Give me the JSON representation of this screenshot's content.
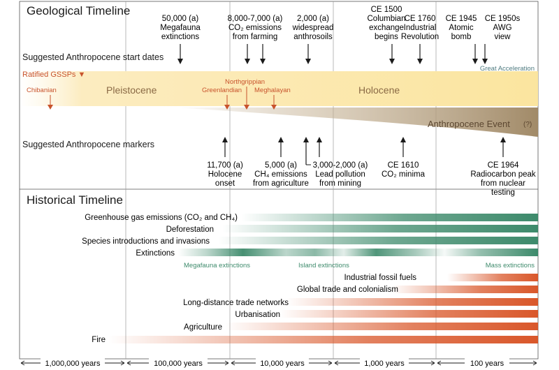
{
  "geo_title": "Geological Timeline",
  "hist_title": "Historical Timeline",
  "start_dates_label": "Suggested Anthropocene start dates",
  "markers_label": "Suggested Anthropocene markers",
  "ratified_gssps": "Ratified GSSPs ▼",
  "epochs": {
    "pleistocene": "Pleistocene",
    "holocene": "Holocene"
  },
  "gssps": {
    "chibanian": "Chibanian",
    "greenlandian": "Greenlandian",
    "northgrippian": "Northgrippian",
    "meghalayan": "Meghalayan"
  },
  "anthropocene_event": {
    "label": "Anthropocene Event",
    "qualifier": "(?)"
  },
  "great_acceleration": "Great Acceleration",
  "start_dates": [
    {
      "lines": [
        "50,000 (a)",
        "Megafauna",
        "extinctions"
      ]
    },
    {
      "lines": [
        "8,000-7,000 (a)",
        "CO₂ emissions",
        "from farming"
      ]
    },
    {
      "lines": [
        "2,000 (a)",
        "widespread",
        "anthrosoils"
      ]
    },
    {
      "lines": [
        "CE 1500",
        "Columbian",
        "exchange",
        "begins"
      ]
    },
    {
      "lines": [
        "CE 1760",
        "Industrial",
        "Revolution"
      ]
    },
    {
      "lines": [
        "CE 1945",
        "Atomic",
        "bomb"
      ]
    },
    {
      "lines": [
        "CE 1950s",
        "AWG",
        "view"
      ]
    }
  ],
  "markers": [
    {
      "lines": [
        "11,700 (a)",
        "Holocene",
        "onset"
      ]
    },
    {
      "lines": [
        "5,000 (a)",
        "CH₄ emissions",
        "from agriculture"
      ]
    },
    {
      "lines": [
        "3,000-2,000 (a)",
        "Lead pollution",
        "from mining"
      ]
    },
    {
      "lines": [
        "CE 1610",
        "CO₂ minima"
      ]
    },
    {
      "lines": [
        "CE 1964",
        "Radiocarbon peak",
        "from nuclear",
        "testing"
      ]
    }
  ],
  "env_bars": [
    {
      "label": "Greenhouse gas emissions (CO₂ and CH₄)"
    },
    {
      "label": "Deforestation"
    },
    {
      "label": "Species introductions and invasions"
    },
    {
      "label": "Extinctions"
    }
  ],
  "extinction_phases": [
    "Megafauna extinctions",
    "Island extinctions",
    "Mass extinctions"
  ],
  "human_bars": [
    {
      "label": "Industrial fossil fuels"
    },
    {
      "label": "Global trade and colonialism"
    },
    {
      "label": "Long-distance trade networks"
    },
    {
      "label": "Urbanisation"
    },
    {
      "label": "Agriculture"
    },
    {
      "label": "Fire"
    }
  ],
  "scale": [
    "1,000,000 years",
    "100,000 years",
    "10,000 years",
    "1,000 years",
    "100 years"
  ],
  "colors": {
    "green": "#3d8a6b",
    "orange": "#d9572a",
    "gssp_red": "#c8532c",
    "holocene_band": "#fbe8a8",
    "anthropocene_band": "#a68f6e",
    "great_acceleration": "#4f7b80"
  }
}
